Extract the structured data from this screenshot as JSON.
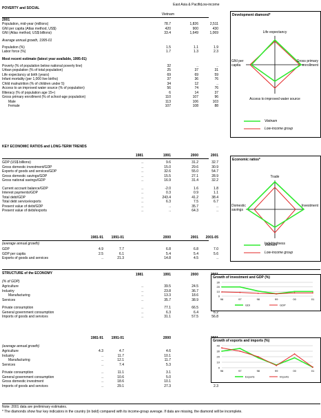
{
  "poverty": {
    "title": "POVERTY and SOCIAL",
    "col_heads": [
      "Vietnam",
      "East Asia & Pacific",
      "Low-income"
    ],
    "year": "2001",
    "rows": [
      {
        "label": "Population, mid-year (millions)",
        "v": [
          "78.7",
          "1,826",
          "2,511"
        ],
        "italic_part": "(millions)"
      },
      {
        "label": "GNI per capita (Atlas method, US$)",
        "v": [
          "420",
          "900",
          "430"
        ]
      },
      {
        "label": "GNI (Atlas method, US$ billions)",
        "v": [
          "33.4",
          "1,649",
          "1,069"
        ]
      }
    ],
    "growth_title": "Average annual growth, 1995-01",
    "growth_rows": [
      {
        "label": "Population (%)",
        "v": [
          "1.5",
          "1.1",
          "1.9"
        ]
      },
      {
        "label": "Labor force (%)",
        "v": [
          "1.7",
          "1.3",
          "2.3"
        ]
      }
    ],
    "recent_title": "Most recent estimate (latest year available, 1995-01)",
    "recent_rows": [
      {
        "label": "Poverty (% of population below national poverty line)",
        "v": [
          "32",
          "..",
          ".."
        ]
      },
      {
        "label": "Urban population (% of total population)",
        "v": [
          "25",
          "37",
          "31"
        ]
      },
      {
        "label": "Life expectancy at birth (years)",
        "v": [
          "69",
          "69",
          "59"
        ]
      },
      {
        "label": "Infant mortality (per 1,000 live births)",
        "v": [
          "37",
          "36",
          "76"
        ]
      },
      {
        "label": "Child malnutrition (% of children under 5)",
        "v": [
          "34",
          "12",
          ".."
        ]
      },
      {
        "label": "Access to an improved water source (% of population)",
        "v": [
          "56",
          "74",
          "76"
        ]
      },
      {
        "label": "Illiteracy (% of population age 15+)",
        "v": [
          "6",
          "14",
          "37"
        ]
      },
      {
        "label": "Gross primary enrollment (% of school-age population)",
        "v": [
          "110",
          "107",
          "96"
        ]
      },
      {
        "label": "Male",
        "v": [
          "113",
          "106",
          "103"
        ],
        "indent": true
      },
      {
        "label": "Female",
        "v": [
          "107",
          "108",
          "88"
        ],
        "indent": true
      }
    ]
  },
  "diamond1": {
    "title": "Development diamond*",
    "top": "Life expectancy",
    "left": "GNI per capita",
    "right": "Gross primary enrollment",
    "bottom": "Access to improved water source",
    "legend": [
      "Vietnam",
      "Low-income group"
    ],
    "colors": {
      "country": "#2eea2e",
      "group": "#e32626"
    }
  },
  "ratios": {
    "title": "KEY ECONOMIC RATIOS and LONG-TERM TRENDS",
    "years": [
      "1981",
      "1991",
      "2000",
      "2001"
    ],
    "rows": [
      {
        "label": "GDP (US$ billions)",
        "v": [
          "..",
          "9.6",
          "31.2",
          "32.7"
        ]
      },
      {
        "label": "Gross domestic investment/GDP",
        "v": [
          "..",
          "15.0",
          "29.6",
          "30.9"
        ]
      },
      {
        "label": "Exports of goods and services/GDP",
        "v": [
          "..",
          "32.6",
          "55.0",
          "54.7"
        ]
      },
      {
        "label": "Gross domestic savings/GDP",
        "v": [
          "..",
          "15.5",
          "27.1",
          "28.9"
        ]
      },
      {
        "label": "Gross national savings/GDP",
        "v": [
          "..",
          "16.9",
          "31.4",
          "32.2"
        ]
      },
      {
        "label": "Current account balance/GDP",
        "v": [
          "..",
          "-2.0",
          "1.6",
          "1.8"
        ],
        "gap": true
      },
      {
        "label": "Interest payments/GDP",
        "v": [
          "..",
          "0.3",
          "0.9",
          "1.1"
        ]
      },
      {
        "label": "Total debt/GDP",
        "v": [
          "..",
          "243.4",
          "41.2",
          "38.4"
        ]
      },
      {
        "label": "Total debt service/exports",
        "v": [
          "..",
          "6.3",
          "7.5",
          "6.7"
        ]
      },
      {
        "label": "Present value of debt/GDP",
        "v": [
          "..",
          "..",
          "35.7",
          ".."
        ]
      },
      {
        "label": "Present value of debt/exports",
        "v": [
          "..",
          "..",
          "64.3",
          ".."
        ]
      }
    ],
    "period_heads": [
      "1981-91",
      "1991-01",
      "2000",
      "2001",
      "2001-05"
    ],
    "period_title": "(average annual growth)",
    "period_rows": [
      {
        "label": "GDP",
        "v": [
          "4.9",
          "7.7",
          "6.8",
          "6.8",
          "7.0"
        ]
      },
      {
        "label": "GDP per capita",
        "v": [
          "2.5",
          "6.1",
          "5.4",
          "5.4",
          "5.6"
        ]
      },
      {
        "label": "Exports of goods and services",
        "v": [
          "..",
          "21.3",
          "14.8",
          "4.5",
          ".."
        ]
      }
    ]
  },
  "diamond2": {
    "title": "Economic ratios*",
    "top": "Trade",
    "left": "Domestic savings",
    "right": "Investment",
    "bottom": "Indebtedness",
    "legend": [
      "Vietnam",
      "Low-income group"
    ]
  },
  "structure": {
    "title": "STRUCTURE of the ECONOMY",
    "years": [
      "1981",
      "1991",
      "2000",
      "2001"
    ],
    "sub": "(% of GDP)",
    "rows": [
      {
        "label": "Agriculture",
        "v": [
          "..",
          "39.5",
          "24.5",
          "23.6"
        ]
      },
      {
        "label": "Industry",
        "v": [
          "..",
          "23.8",
          "36.7",
          "37.8"
        ]
      },
      {
        "label": "Manufacturing",
        "v": [
          "..",
          "13.3",
          "18.6",
          "19.6"
        ],
        "indent": true
      },
      {
        "label": "Services",
        "v": [
          "..",
          "35.7",
          "38.9",
          "38.6"
        ]
      },
      {
        "label": "Private consumption",
        "v": [
          "..",
          "77.1",
          "66.5",
          "65.0"
        ],
        "gap": true
      },
      {
        "label": "General government consumption",
        "v": [
          "..",
          "6.3",
          "6.4",
          "6.2"
        ]
      },
      {
        "label": "Imports of goods and services",
        "v": [
          "..",
          "31.1",
          "57.5",
          "56.8"
        ]
      }
    ],
    "period_heads": [
      "1981-91",
      "1991-01",
      "2000",
      "2001"
    ],
    "period_title": "(average annual growth)",
    "period_rows": [
      {
        "label": "Agriculture",
        "v": [
          "4.3",
          "4.7",
          "4.6",
          "2.8"
        ]
      },
      {
        "label": "Industry",
        "v": [
          "..",
          "11.7",
          "10.1",
          "10.3"
        ]
      },
      {
        "label": "Manufacturing",
        "v": [
          "..",
          "12.1",
          "11.7",
          "11.3"
        ],
        "indent": true
      },
      {
        "label": "Services",
        "v": [
          "..",
          "7.4",
          "5.3",
          "6.1"
        ]
      },
      {
        "label": "Private consumption",
        "v": [
          "..",
          "11.1",
          "3.1",
          "4.5"
        ],
        "gap": true
      },
      {
        "label": "General government consumption",
        "v": [
          "..",
          "10.6",
          "5.0",
          "5.5"
        ]
      },
      {
        "label": "Gross domestic investment",
        "v": [
          "..",
          "18.6",
          "10.1",
          "10.5"
        ]
      },
      {
        "label": "Imports of goods and services",
        "v": [
          "..",
          "29.1",
          "27.3",
          "2.3"
        ]
      }
    ]
  },
  "notes": [
    "Note: 2001 data are preliminary estimates.",
    "* The diamonds show four key indicators in the country (in bold) compared with its income-group average. If data are missing, the diamond will be incomplete."
  ],
  "chart_data": [
    {
      "type": "line",
      "title": "Growth of investment and GDP (%)",
      "x": [
        "96",
        "97",
        "98",
        "99",
        "00",
        "01"
      ],
      "ylim": [
        0,
        30
      ],
      "yticks": [
        "30",
        "20",
        "10",
        "0"
      ],
      "series": [
        {
          "name": "GDI",
          "values": [
            20,
            20,
            11,
            5,
            10,
            10
          ],
          "color": "#2eea2e"
        },
        {
          "name": "GDP",
          "values": [
            9,
            8,
            6,
            5,
            7,
            7
          ],
          "color": "#e32626"
        }
      ]
    },
    {
      "type": "line",
      "title": "Growth of exports and imports (%)",
      "x": [
        "96",
        "97",
        "98",
        "99",
        "00",
        "01"
      ],
      "ylim": [
        0,
        40
      ],
      "yticks": [
        "40",
        "30",
        "20",
        "10",
        "0"
      ],
      "series": [
        {
          "name": "Exports",
          "values": [
            30,
            35,
            18,
            5,
            18,
            1
          ],
          "color": "#2eea2e"
        },
        {
          "name": "Imports",
          "values": [
            36,
            30,
            20,
            4,
            25,
            1
          ],
          "color": "#e32626"
        }
      ]
    }
  ]
}
